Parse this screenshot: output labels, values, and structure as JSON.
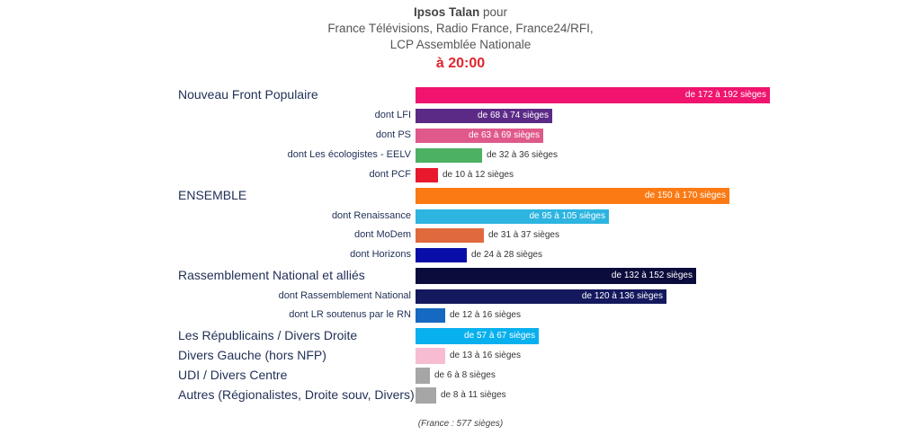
{
  "chart_data": {
    "type": "bar",
    "orientation": "horizontal",
    "title": {
      "line1_bold": "Ipsos Talan",
      "line1_rest": " pour",
      "line2": "France Télévisions, Radio France, France24/RFI,",
      "line3": "LCP Assemblée Nationale",
      "time": "à 20:00"
    },
    "unit": "sièges",
    "rows": [
      {
        "label": "Nouveau Front Populaire",
        "level": "main",
        "min": 172,
        "max": 192,
        "value_label": "de 172 à 192 sièges",
        "color": "#f0146e"
      },
      {
        "label": "dont LFI",
        "level": "sub",
        "min": 68,
        "max": 74,
        "value_label": "de 68 à 74 sièges",
        "color": "#5b2a86"
      },
      {
        "label": "dont PS",
        "level": "sub",
        "min": 63,
        "max": 69,
        "value_label": "de 63 à 69 sièges",
        "color": "#e0598b"
      },
      {
        "label": "dont Les écologistes - EELV",
        "level": "sub",
        "min": 32,
        "max": 36,
        "value_label": "de 32 à 36 sièges",
        "color": "#4cb162"
      },
      {
        "label": "dont PCF",
        "level": "sub",
        "min": 10,
        "max": 12,
        "value_label": "de 10 à 12 sièges",
        "color": "#e8192c"
      },
      {
        "label": "ENSEMBLE",
        "level": "main",
        "min": 150,
        "max": 170,
        "value_label": "de 150 à 170 sièges",
        "color": "#fb7a13"
      },
      {
        "label": "dont Renaissance",
        "level": "sub",
        "min": 95,
        "max": 105,
        "value_label": "de 95 à 105 sièges",
        "color": "#2db4e0"
      },
      {
        "label": "dont MoDem",
        "level": "sub",
        "min": 31,
        "max": 37,
        "value_label": "de 31 à 37 sièges",
        "color": "#e06a3e"
      },
      {
        "label": "dont Horizons",
        "level": "sub",
        "min": 24,
        "max": 28,
        "value_label": "de 24 à 28 sièges",
        "color": "#0a0ea8"
      },
      {
        "label": "Rassemblement National et alliés",
        "level": "main",
        "min": 132,
        "max": 152,
        "value_label": "de 132 à 152 sièges",
        "color": "#0c0c3c"
      },
      {
        "label": "dont Rassemblement National",
        "level": "sub",
        "min": 120,
        "max": 136,
        "value_label": "de 120 à 136 sièges",
        "color": "#14195e"
      },
      {
        "label": "dont LR soutenus par le RN",
        "level": "sub",
        "min": 12,
        "max": 16,
        "value_label": "de 12 à 16 sièges",
        "color": "#1569c0"
      },
      {
        "label": "Les Républicains / Divers Droite",
        "level": "main",
        "min": 57,
        "max": 67,
        "value_label": "de 57 à 67 sièges",
        "color": "#08b0ee"
      },
      {
        "label": "Divers Gauche (hors NFP)",
        "level": "main",
        "min": 13,
        "max": 16,
        "value_label": "de 13 à 16 sièges",
        "color": "#f7bcd2"
      },
      {
        "label": "UDI / Divers Centre",
        "level": "main",
        "min": 6,
        "max": 8,
        "value_label": "de 6 à 8 sièges",
        "color": "#a6a6a6"
      },
      {
        "label": "Autres (Régionalistes, Droite souv, Divers)",
        "level": "main",
        "min": 8,
        "max": 11,
        "value_label": "de 8 à 11 sièges",
        "color": "#a6a6a6"
      }
    ],
    "footnote": "(France : 577 sièges)",
    "xlim": [
      0,
      192
    ]
  }
}
